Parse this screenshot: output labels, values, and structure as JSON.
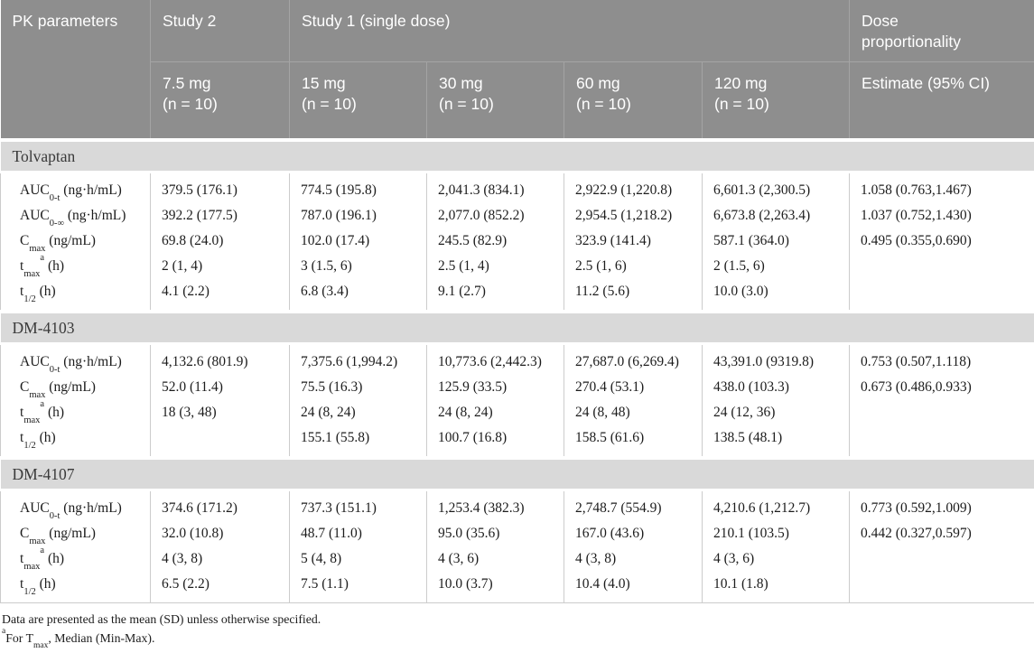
{
  "colors": {
    "header_bg": "#8e8e8e",
    "header_text": "#ffffff",
    "header_divider": "#a4a4a4",
    "section_band_bg": "#d9d9d9",
    "section_band_text": "#3a3a3a",
    "grid_line": "#cccccc",
    "body_text": "#1c1c1c"
  },
  "table": {
    "header": {
      "pk": "PK parameters",
      "study2": "Study 2",
      "study1": "Study 1 (single dose)",
      "dose_proportionality": "Dose proportionality"
    },
    "subheader": [
      {
        "dose": "7.5 mg",
        "n": "(n = 10)"
      },
      {
        "dose": "15 mg",
        "n": "(n = 10)"
      },
      {
        "dose": "30 mg",
        "n": "(n = 10)"
      },
      {
        "dose": "60 mg",
        "n": "(n = 10)"
      },
      {
        "dose": "120 mg",
        "n": "(n = 10)"
      },
      {
        "dose": "Estimate (95% CI)",
        "n": ""
      }
    ],
    "sections": [
      {
        "title": "Tolvaptan",
        "rows": [
          {
            "param": {
              "base": "AUC",
              "sub": "0-t",
              "sup": "",
              "unit": " (ng·h/mL)"
            },
            "values": [
              "379.5 (176.1)",
              "774.5 (195.8)",
              "2,041.3 (834.1)",
              "2,922.9 (1,220.8)",
              "6,601.3 (2,300.5)",
              "1.058 (0.763,1.467)"
            ]
          },
          {
            "param": {
              "base": "AUC",
              "sub": "0-∞",
              "sup": "",
              "unit": " (ng·h/mL)"
            },
            "values": [
              "392.2 (177.5)",
              "787.0 (196.1)",
              "2,077.0 (852.2)",
              "2,954.5 (1,218.2)",
              "6,673.8 (2,263.4)",
              "1.037 (0.752,1.430)"
            ]
          },
          {
            "param": {
              "base": "C",
              "sub": "max",
              "sup": "",
              "unit": " (ng/mL)"
            },
            "values": [
              "69.8 (24.0)",
              "102.0 (17.4)",
              "245.5 (82.9)",
              "323.9 (141.4)",
              "587.1 (364.0)",
              "0.495 (0.355,0.690)"
            ]
          },
          {
            "param": {
              "base": "t",
              "sub": "max",
              "sup": "a",
              "unit": " (h)"
            },
            "values": [
              "2 (1, 4)",
              "3 (1.5, 6)",
              "2.5 (1, 4)",
              "2.5 (1, 6)",
              "2 (1.5, 6)",
              ""
            ]
          },
          {
            "param": {
              "base": "t",
              "sub": "1/2",
              "sup": "",
              "unit": " (h)"
            },
            "values": [
              "4.1 (2.2)",
              "6.8 (3.4)",
              "9.1 (2.7)",
              "11.2 (5.6)",
              "10.0 (3.0)",
              ""
            ]
          }
        ]
      },
      {
        "title": "DM-4103",
        "rows": [
          {
            "param": {
              "base": "AUC",
              "sub": "0-t",
              "sup": "",
              "unit": " (ng·h/mL)"
            },
            "values": [
              "4,132.6 (801.9)",
              "7,375.6 (1,994.2)",
              "10,773.6 (2,442.3)",
              "27,687.0 (6,269.4)",
              "43,391.0 (9319.8)",
              "0.753 (0.507,1.118)"
            ]
          },
          {
            "param": {
              "base": "C",
              "sub": "max",
              "sup": "",
              "unit": " (ng/mL)"
            },
            "values": [
              "52.0 (11.4)",
              "75.5 (16.3)",
              "125.9 (33.5)",
              "270.4 (53.1)",
              "438.0 (103.3)",
              "0.673 (0.486,0.933)"
            ]
          },
          {
            "param": {
              "base": "t",
              "sub": "max",
              "sup": "a",
              "unit": " (h)"
            },
            "values": [
              "18 (3, 48)",
              "24 (8, 24)",
              "24 (8, 24)",
              "24 (8, 48)",
              "24 (12, 36)",
              ""
            ]
          },
          {
            "param": {
              "base": "t",
              "sub": "1/2",
              "sup": "",
              "unit": " (h)"
            },
            "values": [
              "",
              "155.1 (55.8)",
              "100.7 (16.8)",
              "158.5 (61.6)",
              "138.5 (48.1)",
              ""
            ]
          }
        ]
      },
      {
        "title": "DM-4107",
        "rows": [
          {
            "param": {
              "base": "AUC",
              "sub": "0-t",
              "sup": "",
              "unit": " (ng·h/mL)"
            },
            "values": [
              "374.6 (171.2)",
              "737.3 (151.1)",
              "1,253.4 (382.3)",
              "2,748.7 (554.9)",
              "4,210.6 (1,212.7)",
              "0.773 (0.592,1.009)"
            ]
          },
          {
            "param": {
              "base": "C",
              "sub": "max",
              "sup": "",
              "unit": " (ng/mL)"
            },
            "values": [
              "32.0 (10.8)",
              "48.7 (11.0)",
              "95.0 (35.6)",
              "167.0 (43.6)",
              "210.1 (103.5)",
              "0.442 (0.327,0.597)"
            ]
          },
          {
            "param": {
              "base": "t",
              "sub": "max",
              "sup": "a",
              "unit": " (h)"
            },
            "values": [
              "4 (3, 8)",
              "5 (4, 8)",
              "4 (3, 6)",
              "4 (3, 8)",
              "4 (3, 6)",
              ""
            ]
          },
          {
            "param": {
              "base": "t",
              "sub": "1/2",
              "sup": "",
              "unit": " (h)"
            },
            "values": [
              "6.5 (2.2)",
              "7.5 (1.1)",
              "10.0 (3.7)",
              "10.4 (4.0)",
              "10.1 (1.8)",
              ""
            ]
          }
        ]
      }
    ]
  },
  "footnotes": {
    "line1": "Data are presented as the mean (SD) unless otherwise specified.",
    "line2": {
      "marker": "a",
      "pre": "For T",
      "sub": "max",
      "post": ", Median (Min-Max)."
    }
  }
}
